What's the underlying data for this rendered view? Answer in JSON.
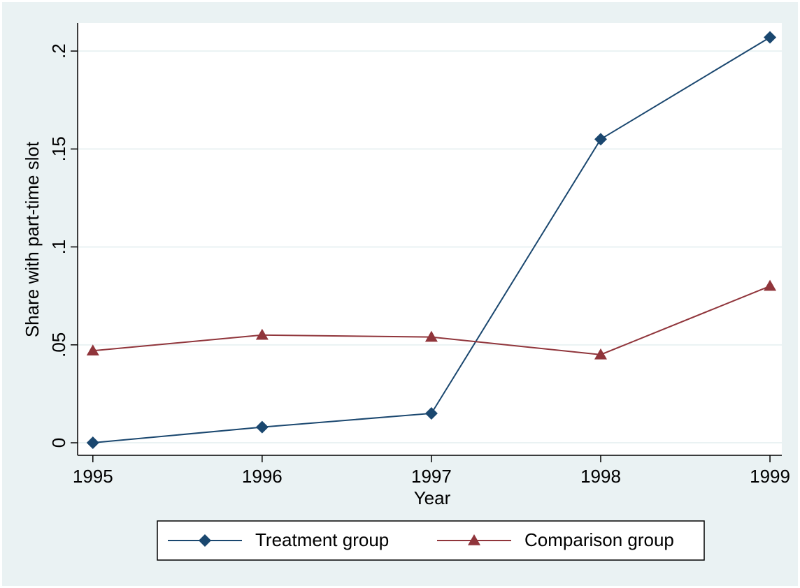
{
  "chart_data": {
    "type": "line",
    "xlabel": "Year",
    "ylabel": "Share with part-time slot",
    "x": [
      1995,
      1996,
      1997,
      1998,
      1999
    ],
    "series": [
      {
        "name": "Treatment group",
        "color": "#1a476f",
        "marker": "diamond",
        "values": [
          0,
          0.008,
          0.015,
          0.155,
          0.207
        ]
      },
      {
        "name": "Comparison group",
        "color": "#90353b",
        "marker": "triangle",
        "values": [
          0.047,
          0.055,
          0.054,
          0.045,
          0.08
        ]
      }
    ],
    "xlim": [
      1994.91,
      1999.07
    ],
    "xticks": [
      1995,
      1996,
      1997,
      1998,
      1999
    ],
    "ylim": [
      -0.0064,
      0.2143
    ],
    "yticks": [
      0,
      {
        "value": 0.05,
        "label": ".05"
      },
      {
        "value": 0.1,
        "label": ".1"
      },
      {
        "value": 0.15,
        "label": ".15"
      },
      {
        "value": 0.2,
        "label": ".2"
      }
    ],
    "grid": true,
    "legend": "bottom"
  }
}
